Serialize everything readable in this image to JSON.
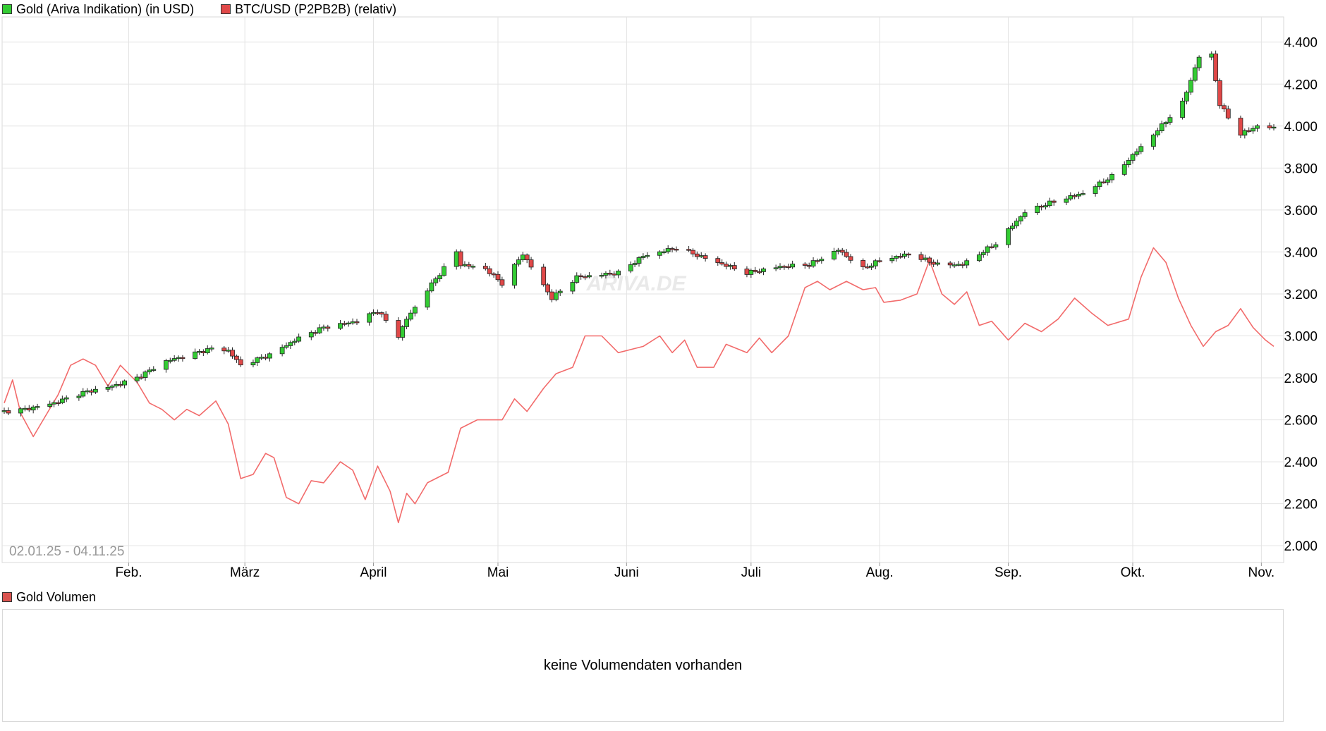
{
  "legend": {
    "gold_label": "Gold (Ariva Indikation) (in USD)",
    "gold_color": "#33cc33",
    "btc_label": "BTC/USD (P2PB2B) (relativ)",
    "btc_color": "#e04848"
  },
  "date_range": "02.01.25 - 04.11.25",
  "watermark": "ARIVA.DE",
  "volume": {
    "label": "Gold Volumen",
    "color": "#d9534f",
    "message": "keine Volumendaten vorhanden"
  },
  "chart_data": {
    "type": "candlestick",
    "x_range": [
      "2025-01-02",
      "2025-11-04"
    ],
    "ylim": [
      1920,
      4520
    ],
    "y_ticks": [
      2000,
      2200,
      2400,
      2600,
      2800,
      3000,
      3200,
      3400,
      3600,
      3800,
      4000,
      4200,
      4400
    ],
    "y_tick_labels": [
      "2.000",
      "2.200",
      "2.400",
      "2.600",
      "2.800",
      "3.000",
      "3.200",
      "3.400",
      "3.600",
      "3.800",
      "4.000",
      "4.200",
      "4.400"
    ],
    "x_ticks": [
      {
        "label": "Feb.",
        "date": "2025-02-01"
      },
      {
        "label": "März",
        "date": "2025-03-01"
      },
      {
        "label": "April",
        "date": "2025-04-01"
      },
      {
        "label": "Mai",
        "date": "2025-05-01"
      },
      {
        "label": "Juni",
        "date": "2025-06-01"
      },
      {
        "label": "Juli",
        "date": "2025-07-01"
      },
      {
        "label": "Aug.",
        "date": "2025-08-01"
      },
      {
        "label": "Sep.",
        "date": "2025-09-01"
      },
      {
        "label": "Okt.",
        "date": "2025-10-01"
      },
      {
        "label": "Nov.",
        "date": "2025-11-01"
      }
    ],
    "grid": true,
    "legend_position": "top-left",
    "gold_series": {
      "name": "Gold (Ariva Indikation) (in USD)",
      "up_color": "#33cc33",
      "down_color": "#e04848",
      "close_anchors": [
        [
          "2025-01-02",
          2640
        ],
        [
          "2025-01-07",
          2650
        ],
        [
          "2025-01-14",
          2680
        ],
        [
          "2025-01-21",
          2730
        ],
        [
          "2025-01-28",
          2760
        ],
        [
          "2025-02-03",
          2800
        ],
        [
          "2025-02-10",
          2880
        ],
        [
          "2025-02-14",
          2900
        ],
        [
          "2025-02-21",
          2940
        ],
        [
          "2025-02-25",
          2930
        ],
        [
          "2025-02-28",
          2860
        ],
        [
          "2025-03-07",
          2910
        ],
        [
          "2025-03-14",
          2990
        ],
        [
          "2025-03-20",
          3040
        ],
        [
          "2025-03-28",
          3070
        ],
        [
          "2025-04-02",
          3120
        ],
        [
          "2025-04-07",
          3000
        ],
        [
          "2025-04-09",
          3080
        ],
        [
          "2025-04-14",
          3220
        ],
        [
          "2025-04-21",
          3400
        ],
        [
          "2025-04-22",
          3340
        ],
        [
          "2025-04-28",
          3320
        ],
        [
          "2025-05-02",
          3250
        ],
        [
          "2025-05-07",
          3390
        ],
        [
          "2025-05-14",
          3180
        ],
        [
          "2025-05-20",
          3280
        ],
        [
          "2025-05-30",
          3300
        ],
        [
          "2025-06-05",
          3380
        ],
        [
          "2025-06-13",
          3420
        ],
        [
          "2025-06-20",
          3370
        ],
        [
          "2025-06-30",
          3300
        ],
        [
          "2025-07-08",
          3330
        ],
        [
          "2025-07-15",
          3340
        ],
        [
          "2025-07-22",
          3410
        ],
        [
          "2025-07-28",
          3320
        ],
        [
          "2025-08-01",
          3360
        ],
        [
          "2025-08-08",
          3390
        ],
        [
          "2025-08-15",
          3340
        ],
        [
          "2025-08-21",
          3340
        ],
        [
          "2025-08-29",
          3440
        ],
        [
          "2025-09-05",
          3590
        ],
        [
          "2025-09-12",
          3640
        ],
        [
          "2025-09-19",
          3680
        ],
        [
          "2025-09-26",
          3760
        ],
        [
          "2025-10-01",
          3860
        ],
        [
          "2025-10-07",
          3980
        ],
        [
          "2025-10-13",
          4110
        ],
        [
          "2025-10-17",
          4330
        ],
        [
          "2025-10-20",
          4340
        ],
        [
          "2025-10-22",
          4100
        ],
        [
          "2025-10-27",
          3960
        ],
        [
          "2025-10-31",
          4000
        ],
        [
          "2025-11-04",
          3990
        ]
      ]
    },
    "btc_series": {
      "name": "BTC/USD (P2PB2B) (relativ)",
      "color": "#f26b6b",
      "values_on_gold_scale": [
        [
          "2025-01-02",
          2680
        ],
        [
          "2025-01-04",
          2790
        ],
        [
          "2025-01-06",
          2630
        ],
        [
          "2025-01-09",
          2520
        ],
        [
          "2025-01-12",
          2620
        ],
        [
          "2025-01-15",
          2720
        ],
        [
          "2025-01-18",
          2860
        ],
        [
          "2025-01-21",
          2890
        ],
        [
          "2025-01-24",
          2860
        ],
        [
          "2025-01-27",
          2760
        ],
        [
          "2025-01-30",
          2860
        ],
        [
          "2025-02-03",
          2780
        ],
        [
          "2025-02-06",
          2680
        ],
        [
          "2025-02-09",
          2650
        ],
        [
          "2025-02-12",
          2600
        ],
        [
          "2025-02-15",
          2650
        ],
        [
          "2025-02-18",
          2620
        ],
        [
          "2025-02-22",
          2690
        ],
        [
          "2025-02-25",
          2580
        ],
        [
          "2025-02-28",
          2320
        ],
        [
          "2025-03-03",
          2340
        ],
        [
          "2025-03-06",
          2440
        ],
        [
          "2025-03-08",
          2420
        ],
        [
          "2025-03-11",
          2230
        ],
        [
          "2025-03-14",
          2200
        ],
        [
          "2025-03-17",
          2310
        ],
        [
          "2025-03-20",
          2300
        ],
        [
          "2025-03-24",
          2400
        ],
        [
          "2025-03-27",
          2360
        ],
        [
          "2025-03-30",
          2220
        ],
        [
          "2025-04-02",
          2380
        ],
        [
          "2025-04-05",
          2260
        ],
        [
          "2025-04-07",
          2110
        ],
        [
          "2025-04-09",
          2250
        ],
        [
          "2025-04-11",
          2200
        ],
        [
          "2025-04-14",
          2300
        ],
        [
          "2025-04-19",
          2350
        ],
        [
          "2025-04-22",
          2560
        ],
        [
          "2025-04-26",
          2600
        ],
        [
          "2025-05-02",
          2600
        ],
        [
          "2025-05-05",
          2700
        ],
        [
          "2025-05-08",
          2640
        ],
        [
          "2025-05-12",
          2750
        ],
        [
          "2025-05-15",
          2820
        ],
        [
          "2025-05-19",
          2850
        ],
        [
          "2025-05-22",
          3000
        ],
        [
          "2025-05-26",
          3000
        ],
        [
          "2025-05-30",
          2920
        ],
        [
          "2025-06-05",
          2950
        ],
        [
          "2025-06-09",
          3000
        ],
        [
          "2025-06-12",
          2920
        ],
        [
          "2025-06-15",
          2980
        ],
        [
          "2025-06-18",
          2850
        ],
        [
          "2025-06-22",
          2850
        ],
        [
          "2025-06-25",
          2960
        ],
        [
          "2025-06-30",
          2920
        ],
        [
          "2025-07-03",
          2990
        ],
        [
          "2025-07-06",
          2920
        ],
        [
          "2025-07-10",
          3000
        ],
        [
          "2025-07-14",
          3230
        ],
        [
          "2025-07-17",
          3260
        ],
        [
          "2025-07-20",
          3220
        ],
        [
          "2025-07-24",
          3260
        ],
        [
          "2025-07-28",
          3220
        ],
        [
          "2025-07-31",
          3230
        ],
        [
          "2025-08-02",
          3160
        ],
        [
          "2025-08-06",
          3170
        ],
        [
          "2025-08-10",
          3200
        ],
        [
          "2025-08-13",
          3360
        ],
        [
          "2025-08-16",
          3200
        ],
        [
          "2025-08-19",
          3150
        ],
        [
          "2025-08-22",
          3210
        ],
        [
          "2025-08-25",
          3050
        ],
        [
          "2025-08-28",
          3070
        ],
        [
          "2025-09-01",
          2980
        ],
        [
          "2025-09-05",
          3060
        ],
        [
          "2025-09-09",
          3020
        ],
        [
          "2025-09-13",
          3080
        ],
        [
          "2025-09-17",
          3180
        ],
        [
          "2025-09-21",
          3110
        ],
        [
          "2025-09-25",
          3050
        ],
        [
          "2025-09-30",
          3080
        ],
        [
          "2025-10-03",
          3280
        ],
        [
          "2025-10-06",
          3420
        ],
        [
          "2025-10-09",
          3350
        ],
        [
          "2025-10-12",
          3180
        ],
        [
          "2025-10-15",
          3050
        ],
        [
          "2025-10-18",
          2950
        ],
        [
          "2025-10-21",
          3020
        ],
        [
          "2025-10-24",
          3050
        ],
        [
          "2025-10-27",
          3130
        ],
        [
          "2025-10-30",
          3040
        ],
        [
          "2025-11-02",
          2980
        ],
        [
          "2025-11-04",
          2950
        ]
      ]
    }
  }
}
